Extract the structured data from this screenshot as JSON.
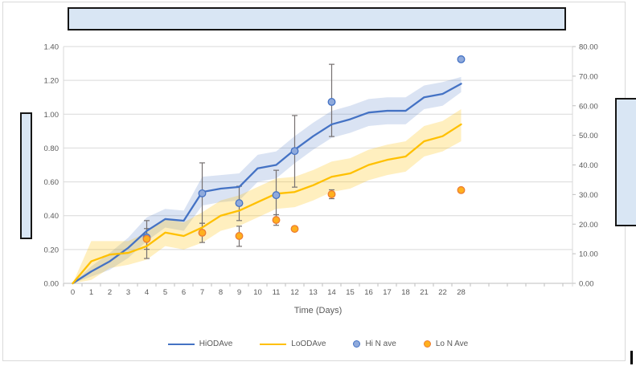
{
  "placeholders": {
    "fill": "#d9e6f4",
    "border": "#161616"
  },
  "chart_data": {
    "type": "line",
    "title": "",
    "x_axis_title": "Time (Days)",
    "categories": [
      "0",
      "1",
      "2",
      "3",
      "4",
      "5",
      "6",
      "7",
      "8",
      "9",
      "10",
      "11",
      "12",
      "13",
      "14",
      "15",
      "16",
      "17",
      "18",
      "21",
      "22",
      "28"
    ],
    "trailing_unlabeled_ticks": 6,
    "left_axis": {
      "min": 0,
      "max": 1.4,
      "ticks": [
        "0.00",
        "0.20",
        "0.40",
        "0.60",
        "0.80",
        "1.00",
        "1.20",
        "1.40"
      ]
    },
    "right_axis": {
      "min": 0,
      "max": 80,
      "ticks": [
        "0.00",
        "10.00",
        "20.00",
        "30.00",
        "40.00",
        "50.00",
        "60.00",
        "70.00",
        "80.00"
      ]
    },
    "grid": true,
    "legend_position": "bottom",
    "colors": {
      "gridline": "#d9d9d9",
      "axis_line": "#bfbfbf",
      "tick_text": "#595959",
      "error_bar": "#767171",
      "hi_line": "#4472c4",
      "hi_band": "rgba(68,114,196,0.20)",
      "lo_line": "#ffc000",
      "lo_band": "rgba(255,192,0,0.25)",
      "hi_marker_fill": "#8faadc",
      "hi_marker_stroke": "#4472c4",
      "lo_marker_fill": "#ffb01e",
      "lo_marker_stroke": "#ed7d31"
    },
    "series": [
      {
        "name": "HiODAve",
        "type": "line",
        "axis": "left",
        "color": "#4472c4",
        "values": [
          0.0,
          0.07,
          0.13,
          0.21,
          0.31,
          0.38,
          0.37,
          0.54,
          0.56,
          0.57,
          0.68,
          0.7,
          0.79,
          0.87,
          0.94,
          0.97,
          1.01,
          1.02,
          1.02,
          1.1,
          1.12,
          1.18
        ],
        "band_upper": [
          0.0,
          0.1,
          0.18,
          0.27,
          0.39,
          0.44,
          0.43,
          0.63,
          0.64,
          0.65,
          0.76,
          0.78,
          0.87,
          0.95,
          1.02,
          1.05,
          1.09,
          1.1,
          1.1,
          1.17,
          1.19,
          1.22
        ],
        "band_lower": [
          0.0,
          0.04,
          0.08,
          0.15,
          0.25,
          0.33,
          0.31,
          0.46,
          0.48,
          0.49,
          0.6,
          0.62,
          0.71,
          0.79,
          0.86,
          0.89,
          0.93,
          0.94,
          0.94,
          1.03,
          1.05,
          1.13
        ]
      },
      {
        "name": "LoODAve",
        "type": "line",
        "axis": "left",
        "color": "#ffc000",
        "values": [
          0.0,
          0.13,
          0.17,
          0.18,
          0.22,
          0.3,
          0.28,
          0.33,
          0.4,
          0.43,
          0.48,
          0.53,
          0.54,
          0.58,
          0.63,
          0.65,
          0.7,
          0.73,
          0.75,
          0.84,
          0.87,
          0.94
        ],
        "band_upper": [
          0.0,
          0.25,
          0.25,
          0.25,
          0.3,
          0.38,
          0.36,
          0.42,
          0.49,
          0.52,
          0.57,
          0.62,
          0.63,
          0.67,
          0.72,
          0.74,
          0.79,
          0.82,
          0.84,
          0.93,
          0.96,
          1.03
        ],
        "band_lower": [
          0.0,
          0.02,
          0.09,
          0.11,
          0.14,
          0.22,
          0.2,
          0.24,
          0.31,
          0.34,
          0.39,
          0.44,
          0.45,
          0.49,
          0.54,
          0.56,
          0.61,
          0.64,
          0.66,
          0.75,
          0.78,
          0.84
        ]
      },
      {
        "name": "Hi N ave",
        "type": "scatter",
        "axis": "right",
        "points": [
          {
            "day": "4",
            "value": 15.5,
            "err_up": 3.0,
            "err_dn": 4.0
          },
          {
            "day": "7",
            "value": 30.4,
            "err_up": 10.3,
            "err_dn": 10.1
          },
          {
            "day": "9",
            "value": 27.1,
            "err_up": 5.7,
            "err_dn": 5.9
          },
          {
            "day": "11",
            "value": 29.8,
            "err_up": 8.4,
            "err_dn": 8.1
          },
          {
            "day": "12",
            "value": 44.7,
            "err_up": 12.0,
            "err_dn": 12.2
          },
          {
            "day": "14",
            "value": 61.3,
            "err_up": 12.7,
            "err_dn": 11.7
          },
          {
            "day": "28",
            "value": 75.7,
            "err_up": 0,
            "err_dn": 0
          }
        ]
      },
      {
        "name": "Lo N Ave",
        "type": "scatter",
        "axis": "right",
        "points": [
          {
            "day": "4",
            "value": 15.0,
            "err_up": 6.2,
            "err_dn": 6.6
          },
          {
            "day": "7",
            "value": 17.1,
            "err_up": 3.2,
            "err_dn": 3.3
          },
          {
            "day": "9",
            "value": 16.0,
            "err_up": 3.3,
            "err_dn": 3.5
          },
          {
            "day": "11",
            "value": 21.4,
            "err_up": 1.8,
            "err_dn": 1.8
          },
          {
            "day": "12",
            "value": 18.4,
            "err_up": 0,
            "err_dn": 0
          },
          {
            "day": "14",
            "value": 30.1,
            "err_up": 1.5,
            "err_dn": 1.5
          },
          {
            "day": "28",
            "value": 31.5,
            "err_up": 0,
            "err_dn": 0
          }
        ]
      }
    ]
  }
}
